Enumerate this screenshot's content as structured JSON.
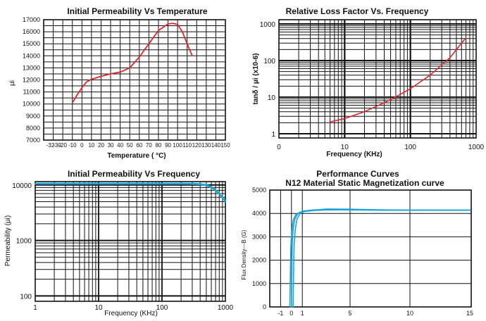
{
  "chart_data": [
    {
      "type": "line",
      "title": "Initial Permeability  Vs  Temperature",
      "xlabel": "Temperature ( °C)",
      "ylabel": "µi",
      "x_ticks": [
        "-32",
        "-30",
        "-20",
        "-10",
        "0",
        "10",
        "20",
        "30",
        "40",
        "50",
        "60",
        "70",
        "80",
        "90",
        "100",
        "110",
        "120",
        "130",
        "140",
        "150"
      ],
      "y_ticks": [
        "7000",
        "8000",
        "9000",
        "10000",
        "11000",
        "12000",
        "13000",
        "14000",
        "15000",
        "16000",
        "17000"
      ],
      "xlim": [
        -40,
        150
      ],
      "ylim": [
        7000,
        17000
      ],
      "grid": true,
      "series": [
        {
          "color": "#e0262b",
          "x": [
            -10,
            -5,
            0,
            5,
            10,
            20,
            30,
            40,
            50,
            60,
            70,
            80,
            90,
            95,
            100,
            105,
            110,
            115
          ],
          "y": [
            10100,
            10750,
            11350,
            11850,
            12050,
            12300,
            12500,
            12650,
            13000,
            13900,
            15000,
            16100,
            16650,
            16700,
            16600,
            16000,
            15000,
            14050
          ]
        }
      ]
    },
    {
      "type": "line",
      "title": "Relative Loss Factor Vs. Frequency",
      "xlabel": "Frequency  (KHz)",
      "ylabel": "tanδ / µi  (x10-6)",
      "x_ticks": [
        "0",
        "10",
        "100",
        "1000"
      ],
      "y_ticks": [
        "1",
        "10",
        "100",
        "1000"
      ],
      "x_scale": "log",
      "y_scale": "log",
      "xlim": [
        1,
        1000
      ],
      "ylim": [
        1,
        1000
      ],
      "grid": true,
      "series": [
        {
          "color": "#e0262b",
          "x": [
            6,
            10,
            20,
            50,
            100,
            200,
            400,
            700
          ],
          "y": [
            2.1,
            2.6,
            4.0,
            8.5,
            17,
            40,
            120,
            420
          ]
        }
      ]
    },
    {
      "type": "line",
      "title": "Initial Permeability Vs Frequency",
      "xlabel": "Frequency (KHz)",
      "ylabel": "Permeability (µi)",
      "x_ticks": [
        "1",
        "10",
        "100",
        "1000"
      ],
      "y_ticks": [
        "100",
        "1000",
        "10000"
      ],
      "x_scale": "log",
      "y_scale": "log",
      "xlim": [
        1,
        1000
      ],
      "ylim": [
        80,
        11500
      ],
      "grid": true,
      "series": [
        {
          "color": "#1aa3db",
          "x": [
            1,
            10,
            50,
            100,
            200,
            300,
            400,
            500,
            600,
            700,
            800,
            900,
            1000
          ],
          "y": [
            10700,
            10700,
            10700,
            10700,
            10700,
            10650,
            10500,
            10100,
            9300,
            8200,
            7000,
            6000,
            5200
          ]
        },
        {
          "color": "#1aa3db",
          "x": [
            1,
            10,
            50,
            100,
            200,
            300,
            400,
            500,
            600,
            700,
            800,
            900,
            1000
          ],
          "y": [
            10400,
            10400,
            10400,
            10400,
            10400,
            10350,
            10200,
            9800,
            9000,
            7900,
            6800,
            5800,
            5000
          ]
        }
      ]
    },
    {
      "type": "line",
      "title": "Performance  Curves",
      "subtitle": "N12 Material Static  Magnetization curve",
      "xlabel": "",
      "ylabel": "Flux Density---B (G)",
      "x_ticks": [
        "-1",
        "0",
        "1",
        "5",
        "10",
        "15"
      ],
      "y_ticks": [
        "0",
        "1000",
        "2000",
        "3000",
        "4000",
        "5000"
      ],
      "xlim": [
        -2,
        15
      ],
      "ylim": [
        0,
        5000
      ],
      "grid": true,
      "series": [
        {
          "color": "#1aa3db",
          "x": [
            0.0,
            0.03,
            0.08,
            0.15,
            0.3,
            0.6,
            1.0,
            2.0,
            3.0,
            5.0,
            8.0,
            12.0,
            15.0
          ],
          "y": [
            0,
            1800,
            2800,
            3300,
            3750,
            4000,
            4100,
            4150,
            4170,
            4150,
            4140,
            4140,
            4140
          ]
        },
        {
          "color": "#1aa3db",
          "x": [
            -0.15,
            -0.1,
            -0.05,
            0.02,
            0.15,
            0.4,
            0.8,
            1.5,
            3.0,
            5.0,
            8.0,
            12.0,
            15.0
          ],
          "y": [
            0,
            1500,
            2600,
            3200,
            3700,
            3950,
            4050,
            4120,
            4190,
            4180,
            4150,
            4140,
            4140
          ]
        },
        {
          "color": "#1aa3db",
          "x": [
            0.15,
            0.2,
            0.25,
            0.35,
            0.5,
            0.8,
            1.2,
            2.0,
            3.0,
            5.0,
            8.0,
            12.0,
            15.0
          ],
          "y": [
            0,
            1700,
            2700,
            3300,
            3750,
            4000,
            4080,
            4130,
            4150,
            4160,
            4140,
            4140,
            4140
          ]
        }
      ]
    }
  ]
}
